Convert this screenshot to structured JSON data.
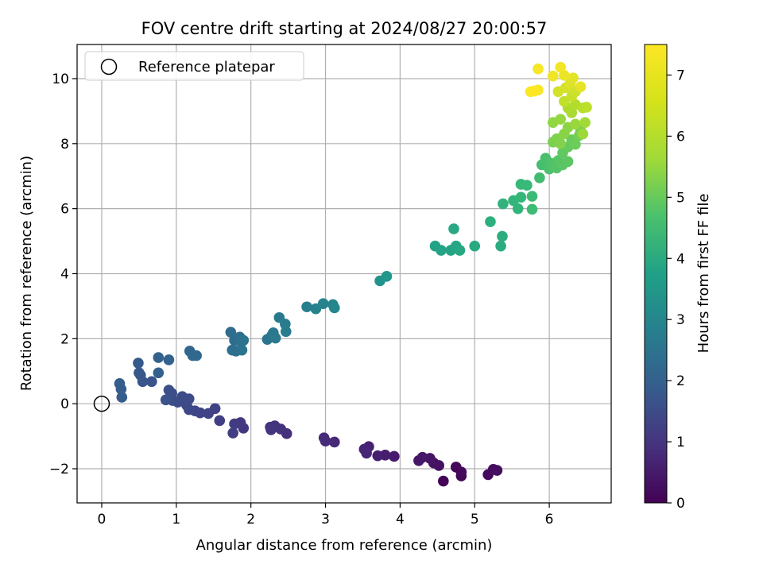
{
  "chart_data": {
    "type": "scatter",
    "title": "FOV centre drift starting at 2024/08/27 20:00:57",
    "xlabel": "Angular distance from reference (arcmin)",
    "ylabel": "Rotation from reference (arcmin)",
    "xlim": [
      -0.33,
      6.83
    ],
    "ylim": [
      -3.05,
      11.05
    ],
    "xticks": [
      0,
      1,
      2,
      3,
      4,
      5,
      6
    ],
    "yticks": [
      -2,
      0,
      2,
      4,
      6,
      8,
      10
    ],
    "grid": true,
    "legend": {
      "placement": "top-left",
      "entries": [
        "Reference platepar"
      ]
    },
    "reference_point": {
      "x": 0,
      "y": 0
    },
    "colorbar": {
      "label": "Hours from first FF file",
      "range": [
        0,
        7.5
      ],
      "ticks": [
        0,
        1,
        2,
        3,
        4,
        5,
        6,
        7
      ],
      "colormap": "viridis"
    },
    "points": [
      {
        "x": 4.58,
        "y": -2.38,
        "h": 0.05
      },
      {
        "x": 4.82,
        "y": -2.22,
        "h": 0.1
      },
      {
        "x": 4.75,
        "y": -1.95,
        "h": 0.12
      },
      {
        "x": 4.82,
        "y": -2.1,
        "h": 0.16
      },
      {
        "x": 5.18,
        "y": -2.18,
        "h": 0.2
      },
      {
        "x": 5.25,
        "y": -2.02,
        "h": 0.24
      },
      {
        "x": 5.3,
        "y": -2.05,
        "h": 0.27
      },
      {
        "x": 4.52,
        "y": -1.9,
        "h": 0.32
      },
      {
        "x": 4.45,
        "y": -1.82,
        "h": 0.36
      },
      {
        "x": 4.4,
        "y": -1.68,
        "h": 0.4
      },
      {
        "x": 4.3,
        "y": -1.65,
        "h": 0.44
      },
      {
        "x": 4.25,
        "y": -1.75,
        "h": 0.48
      },
      {
        "x": 3.92,
        "y": -1.62,
        "h": 0.55
      },
      {
        "x": 3.8,
        "y": -1.58,
        "h": 0.6
      },
      {
        "x": 3.7,
        "y": -1.6,
        "h": 0.64
      },
      {
        "x": 3.58,
        "y": -1.32,
        "h": 0.7
      },
      {
        "x": 3.52,
        "y": -1.4,
        "h": 0.74
      },
      {
        "x": 3.55,
        "y": -1.52,
        "h": 0.78
      },
      {
        "x": 3.12,
        "y": -1.18,
        "h": 0.85
      },
      {
        "x": 3.0,
        "y": -1.15,
        "h": 0.9
      },
      {
        "x": 2.98,
        "y": -1.05,
        "h": 0.94
      },
      {
        "x": 2.48,
        "y": -0.92,
        "h": 1.02
      },
      {
        "x": 2.4,
        "y": -0.78,
        "h": 1.07
      },
      {
        "x": 2.32,
        "y": -0.68,
        "h": 1.1
      },
      {
        "x": 2.26,
        "y": -0.72,
        "h": 1.13
      },
      {
        "x": 2.27,
        "y": -0.8,
        "h": 1.16
      },
      {
        "x": 1.9,
        "y": -0.75,
        "h": 1.22
      },
      {
        "x": 1.86,
        "y": -0.58,
        "h": 1.26
      },
      {
        "x": 1.78,
        "y": -0.62,
        "h": 1.3
      },
      {
        "x": 1.76,
        "y": -0.9,
        "h": 1.34
      },
      {
        "x": 1.58,
        "y": -0.52,
        "h": 1.4
      },
      {
        "x": 1.52,
        "y": -0.15,
        "h": 1.45
      },
      {
        "x": 1.43,
        "y": -0.3,
        "h": 1.49
      },
      {
        "x": 1.32,
        "y": -0.28,
        "h": 1.53
      },
      {
        "x": 1.25,
        "y": -0.22,
        "h": 1.56
      },
      {
        "x": 1.17,
        "y": -0.18,
        "h": 1.6
      },
      {
        "x": 1.14,
        "y": -0.05,
        "h": 1.63
      },
      {
        "x": 1.17,
        "y": 0.15,
        "h": 1.66
      },
      {
        "x": 1.08,
        "y": 0.22,
        "h": 1.7
      },
      {
        "x": 1.02,
        "y": 0.05,
        "h": 1.73
      },
      {
        "x": 0.95,
        "y": 0.1,
        "h": 1.77
      },
      {
        "x": 0.94,
        "y": 0.32,
        "h": 1.8
      },
      {
        "x": 0.9,
        "y": 0.42,
        "h": 1.84
      },
      {
        "x": 0.86,
        "y": 0.12,
        "h": 1.88
      },
      {
        "x": 0.67,
        "y": 0.68,
        "h": 1.94
      },
      {
        "x": 0.55,
        "y": 0.68,
        "h": 1.98
      },
      {
        "x": 0.52,
        "y": 0.88,
        "h": 2.02
      },
      {
        "x": 0.5,
        "y": 0.95,
        "h": 2.06
      },
      {
        "x": 0.49,
        "y": 1.25,
        "h": 2.1
      },
      {
        "x": 0.27,
        "y": 0.2,
        "h": 2.16
      },
      {
        "x": 0.26,
        "y": 0.45,
        "h": 2.19
      },
      {
        "x": 0.24,
        "y": 0.62,
        "h": 2.22
      },
      {
        "x": 0.76,
        "y": 0.95,
        "h": 2.28
      },
      {
        "x": 0.76,
        "y": 1.42,
        "h": 2.32
      },
      {
        "x": 0.9,
        "y": 1.35,
        "h": 2.36
      },
      {
        "x": 1.18,
        "y": 1.62,
        "h": 2.45
      },
      {
        "x": 1.22,
        "y": 1.48,
        "h": 2.49
      },
      {
        "x": 1.27,
        "y": 1.48,
        "h": 2.53
      },
      {
        "x": 1.73,
        "y": 2.2,
        "h": 2.62
      },
      {
        "x": 1.78,
        "y": 1.95,
        "h": 2.66
      },
      {
        "x": 1.75,
        "y": 1.65,
        "h": 2.7
      },
      {
        "x": 1.8,
        "y": 1.62,
        "h": 2.73
      },
      {
        "x": 1.85,
        "y": 2.05,
        "h": 2.77
      },
      {
        "x": 1.87,
        "y": 1.9,
        "h": 2.8
      },
      {
        "x": 1.9,
        "y": 1.95,
        "h": 2.83
      },
      {
        "x": 1.88,
        "y": 1.65,
        "h": 2.86
      },
      {
        "x": 2.22,
        "y": 1.98,
        "h": 2.94
      },
      {
        "x": 2.28,
        "y": 2.1,
        "h": 2.97
      },
      {
        "x": 2.3,
        "y": 2.18,
        "h": 3.0
      },
      {
        "x": 2.33,
        "y": 2.02,
        "h": 3.03
      },
      {
        "x": 2.38,
        "y": 2.65,
        "h": 3.08
      },
      {
        "x": 2.46,
        "y": 2.45,
        "h": 3.12
      },
      {
        "x": 2.47,
        "y": 2.22,
        "h": 3.15
      },
      {
        "x": 2.75,
        "y": 2.98,
        "h": 3.25
      },
      {
        "x": 2.87,
        "y": 2.92,
        "h": 3.3
      },
      {
        "x": 2.97,
        "y": 3.08,
        "h": 3.35
      },
      {
        "x": 3.1,
        "y": 3.05,
        "h": 3.4
      },
      {
        "x": 3.12,
        "y": 2.95,
        "h": 3.44
      },
      {
        "x": 3.73,
        "y": 3.78,
        "h": 3.85
      },
      {
        "x": 3.82,
        "y": 3.92,
        "h": 3.92
      },
      {
        "x": 4.47,
        "y": 4.85,
        "h": 4.3
      },
      {
        "x": 4.55,
        "y": 4.72,
        "h": 4.34
      },
      {
        "x": 4.68,
        "y": 4.72,
        "h": 4.38
      },
      {
        "x": 4.75,
        "y": 4.85,
        "h": 4.42
      },
      {
        "x": 4.8,
        "y": 4.72,
        "h": 4.46
      },
      {
        "x": 4.72,
        "y": 5.38,
        "h": 4.5
      },
      {
        "x": 5.0,
        "y": 4.85,
        "h": 4.56
      },
      {
        "x": 5.35,
        "y": 4.85,
        "h": 4.64
      },
      {
        "x": 5.37,
        "y": 5.15,
        "h": 4.68
      },
      {
        "x": 5.21,
        "y": 5.6,
        "h": 4.74
      },
      {
        "x": 5.38,
        "y": 6.15,
        "h": 4.84
      },
      {
        "x": 5.52,
        "y": 6.25,
        "h": 4.89
      },
      {
        "x": 5.58,
        "y": 6.0,
        "h": 4.94
      },
      {
        "x": 5.62,
        "y": 6.35,
        "h": 4.98
      },
      {
        "x": 5.62,
        "y": 6.75,
        "h": 5.02
      },
      {
        "x": 5.7,
        "y": 6.72,
        "h": 5.06
      },
      {
        "x": 5.77,
        "y": 6.38,
        "h": 5.1
      },
      {
        "x": 5.77,
        "y": 5.98,
        "h": 5.14
      },
      {
        "x": 5.87,
        "y": 6.95,
        "h": 5.2
      },
      {
        "x": 5.9,
        "y": 7.35,
        "h": 5.26
      },
      {
        "x": 5.95,
        "y": 7.55,
        "h": 5.3
      },
      {
        "x": 6.0,
        "y": 7.22,
        "h": 5.34
      },
      {
        "x": 6.02,
        "y": 7.4,
        "h": 5.38
      },
      {
        "x": 6.05,
        "y": 7.3,
        "h": 5.42
      },
      {
        "x": 6.1,
        "y": 7.25,
        "h": 5.46
      },
      {
        "x": 6.12,
        "y": 7.48,
        "h": 5.5
      },
      {
        "x": 6.18,
        "y": 7.35,
        "h": 5.54
      },
      {
        "x": 6.25,
        "y": 7.45,
        "h": 5.58
      },
      {
        "x": 6.18,
        "y": 7.72,
        "h": 5.64
      },
      {
        "x": 6.25,
        "y": 7.9,
        "h": 5.7
      },
      {
        "x": 6.3,
        "y": 8.12,
        "h": 5.76
      },
      {
        "x": 6.35,
        "y": 7.98,
        "h": 5.82
      },
      {
        "x": 6.4,
        "y": 8.25,
        "h": 5.88
      },
      {
        "x": 6.42,
        "y": 8.4,
        "h": 5.94
      },
      {
        "x": 6.05,
        "y": 8.05,
        "h": 6.0
      },
      {
        "x": 6.1,
        "y": 8.15,
        "h": 6.05
      },
      {
        "x": 6.15,
        "y": 8.0,
        "h": 6.1
      },
      {
        "x": 6.2,
        "y": 8.3,
        "h": 6.15
      },
      {
        "x": 6.25,
        "y": 8.5,
        "h": 6.2
      },
      {
        "x": 6.05,
        "y": 8.65,
        "h": 6.25
      },
      {
        "x": 6.15,
        "y": 8.75,
        "h": 6.3
      },
      {
        "x": 6.35,
        "y": 8.6,
        "h": 6.35
      },
      {
        "x": 6.45,
        "y": 8.3,
        "h": 6.4
      },
      {
        "x": 6.48,
        "y": 8.65,
        "h": 6.45
      },
      {
        "x": 6.3,
        "y": 8.95,
        "h": 6.52
      },
      {
        "x": 6.25,
        "y": 9.1,
        "h": 6.58
      },
      {
        "x": 6.35,
        "y": 9.2,
        "h": 6.64
      },
      {
        "x": 6.45,
        "y": 9.1,
        "h": 6.7
      },
      {
        "x": 6.5,
        "y": 9.12,
        "h": 6.76
      },
      {
        "x": 6.2,
        "y": 9.3,
        "h": 6.82
      },
      {
        "x": 6.3,
        "y": 9.45,
        "h": 6.88
      },
      {
        "x": 6.35,
        "y": 9.6,
        "h": 6.94
      },
      {
        "x": 6.12,
        "y": 9.6,
        "h": 7.0
      },
      {
        "x": 6.22,
        "y": 9.72,
        "h": 7.06
      },
      {
        "x": 6.28,
        "y": 9.85,
        "h": 7.12
      },
      {
        "x": 6.32,
        "y": 10.02,
        "h": 7.18
      },
      {
        "x": 6.42,
        "y": 9.75,
        "h": 7.24
      },
      {
        "x": 6.2,
        "y": 10.1,
        "h": 7.3
      },
      {
        "x": 6.05,
        "y": 10.08,
        "h": 7.34
      },
      {
        "x": 6.15,
        "y": 10.35,
        "h": 7.38
      },
      {
        "x": 5.85,
        "y": 10.3,
        "h": 7.42
      },
      {
        "x": 5.85,
        "y": 9.65,
        "h": 7.46
      },
      {
        "x": 5.75,
        "y": 9.6,
        "h": 7.48
      },
      {
        "x": 5.8,
        "y": 9.62,
        "h": 7.5
      }
    ]
  }
}
